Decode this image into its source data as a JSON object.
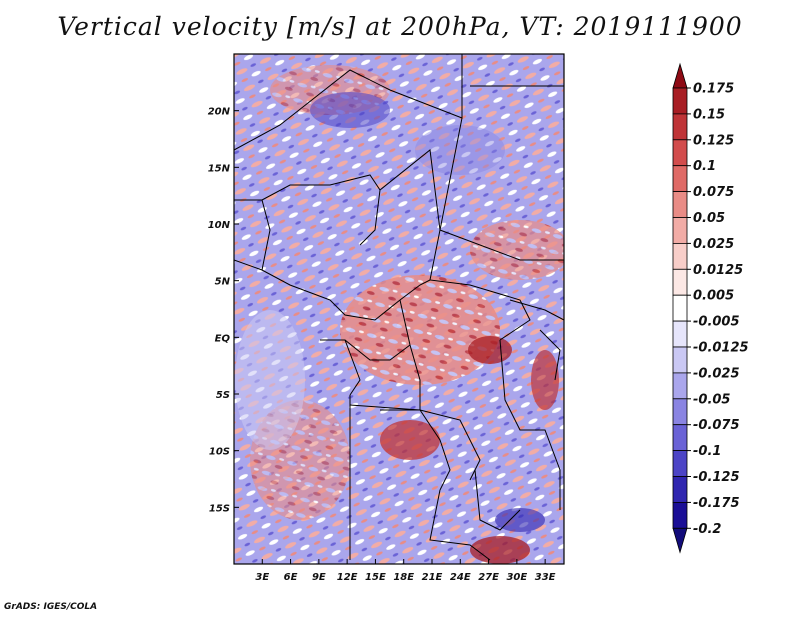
{
  "title": "Vertical velocity [m/s] at 200hPa, VT: 2019111900",
  "credit": "GrADS: IGES/COLA",
  "map": {
    "lat_labels": [
      "20N",
      "15N",
      "10N",
      "5N",
      "EQ",
      "5S",
      "10S",
      "15S"
    ],
    "lat_values": [
      20,
      15,
      10,
      5,
      0,
      -5,
      -10,
      -15
    ],
    "lon_labels": [
      "3E",
      "6E",
      "9E",
      "12E",
      "15E",
      "18E",
      "21E",
      "24E",
      "27E",
      "30E",
      "33E"
    ],
    "lon_values": [
      3,
      6,
      9,
      12,
      15,
      18,
      21,
      24,
      27,
      30,
      33
    ],
    "lat_range": [
      -20,
      25
    ],
    "lon_range": [
      0,
      35
    ]
  },
  "colorbar": {
    "labels": [
      "0.175",
      "0.15",
      "0.125",
      "0.1",
      "0.075",
      "0.05",
      "0.025",
      "0.0125",
      "0.005",
      "-0.005",
      "-0.0125",
      "-0.025",
      "-0.05",
      "-0.075",
      "-0.1",
      "-0.125",
      "-0.175",
      "-0.2"
    ],
    "colors": [
      "#8e0a14",
      "#a81e24",
      "#bf3437",
      "#d24c4c",
      "#df6a66",
      "#e98c86",
      "#f2aca6",
      "#f8cec9",
      "#fce8e5",
      "#ffffff",
      "#e6e5fb",
      "#cac8f4",
      "#aaa6ec",
      "#8a84e2",
      "#6a62d6",
      "#4c44c6",
      "#3026b0",
      "#1a0e96",
      "#120c7a"
    ]
  },
  "colors": {
    "positive": "#d24c4c",
    "negative": "#6a62d6",
    "border": "#000000"
  }
}
